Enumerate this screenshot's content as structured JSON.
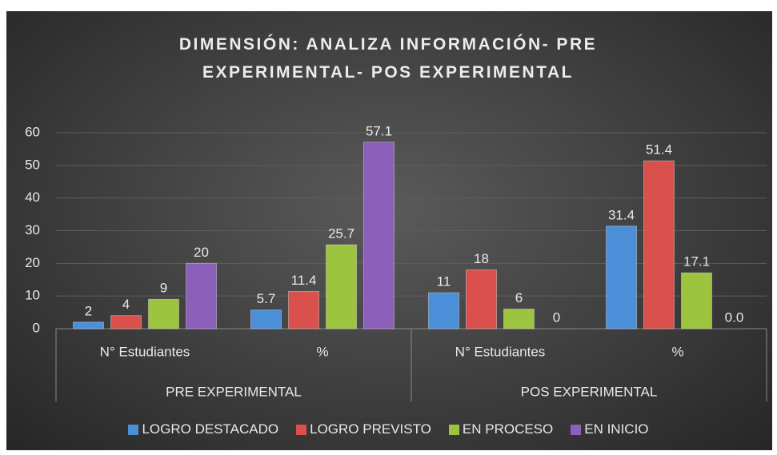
{
  "chart_data": {
    "type": "bar",
    "title": "DIMENSIÓN: ANALIZA INFORMACIÓN- PRE EXPERIMENTAL- POS EXPERIMENTAL",
    "groups": [
      {
        "label": "PRE EXPERIMENTAL",
        "categories": [
          "N° Estudiantes",
          "%"
        ]
      },
      {
        "label": "POS EXPERIMENTAL",
        "categories": [
          "N° Estudiantes",
          "%"
        ]
      }
    ],
    "series": [
      {
        "name": "LOGRO DESTACADO",
        "color": "#4a8fd8",
        "values": [
          2,
          5.7,
          11,
          31.4
        ]
      },
      {
        "name": "LOGRO PREVISTO",
        "color": "#d9504c",
        "values": [
          4,
          11.4,
          18,
          51.4
        ]
      },
      {
        "name": "EN PROCESO",
        "color": "#9cc43e",
        "values": [
          9,
          25.7,
          6,
          17.1
        ]
      },
      {
        "name": "EN INICIO",
        "color": "#8c5fba",
        "values": [
          20,
          57.1,
          0,
          0.0
        ],
        "value_labels": [
          "20",
          "57.1",
          "0",
          "0.0"
        ]
      }
    ],
    "ylim": [
      0,
      60
    ],
    "yticks": [
      0,
      10,
      20,
      30,
      40,
      50,
      60
    ],
    "grid": true,
    "legend": "bottom"
  }
}
